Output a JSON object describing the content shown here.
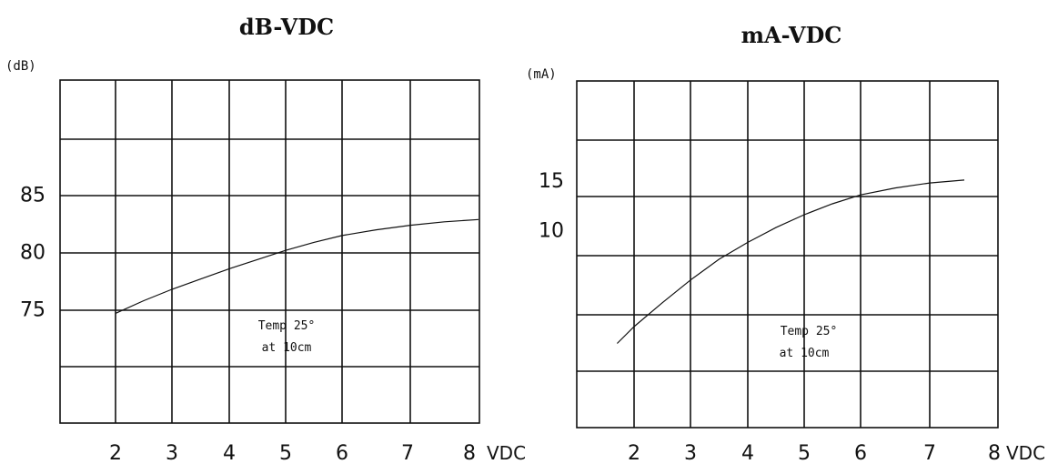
{
  "chart_data": [
    {
      "type": "line",
      "title": "dB-VDC",
      "ylabel": "(dB)",
      "xlabel": "VDC",
      "x_ticks": [
        "2",
        "3",
        "4",
        "5",
        "6",
        "7",
        "8"
      ],
      "y_ticks": [
        {
          "value": 85,
          "label": "85"
        },
        {
          "value": 80,
          "label": "80"
        },
        {
          "value": 75,
          "label": "75"
        }
      ],
      "xlim": [
        1,
        8
      ],
      "ylim": [
        65,
        95
      ],
      "grid": true,
      "annotation": [
        "Temp 25°",
        "at 10cm"
      ],
      "series": [
        {
          "x": [
            2.0,
            2.5,
            3.0,
            3.5,
            4.0,
            4.5,
            5.0,
            5.5,
            6.0,
            6.5,
            7.0,
            7.5,
            8.0
          ],
          "values": [
            74.6,
            75.7,
            76.7,
            77.6,
            78.5,
            79.3,
            80.1,
            80.8,
            81.4,
            81.9,
            82.3,
            82.6,
            82.8
          ]
        }
      ]
    },
    {
      "type": "line",
      "title": "mA-VDC",
      "ylabel": "(mA)",
      "xlabel": "VDC",
      "x_ticks": [
        "2",
        "3",
        "4",
        "5",
        "6",
        "7",
        "8"
      ],
      "y_ticks": [
        {
          "value": 15,
          "label": "15"
        },
        {
          "value": 10,
          "label": "10"
        }
      ],
      "xlim": [
        1,
        8
      ],
      "ylim": [
        -10,
        25
      ],
      "grid": true,
      "annotation": [
        "Temp 25°",
        "at 10cm"
      ],
      "series": [
        {
          "x": [
            1.7,
            2.0,
            2.5,
            3.0,
            3.5,
            4.0,
            4.5,
            5.0,
            5.5,
            6.0,
            6.5,
            7.0,
            7.5
          ],
          "values": [
            -1.5,
            0.2,
            2.6,
            4.9,
            7.0,
            8.7,
            10.2,
            11.5,
            12.6,
            13.5,
            14.2,
            14.7,
            15.0
          ]
        }
      ]
    }
  ]
}
